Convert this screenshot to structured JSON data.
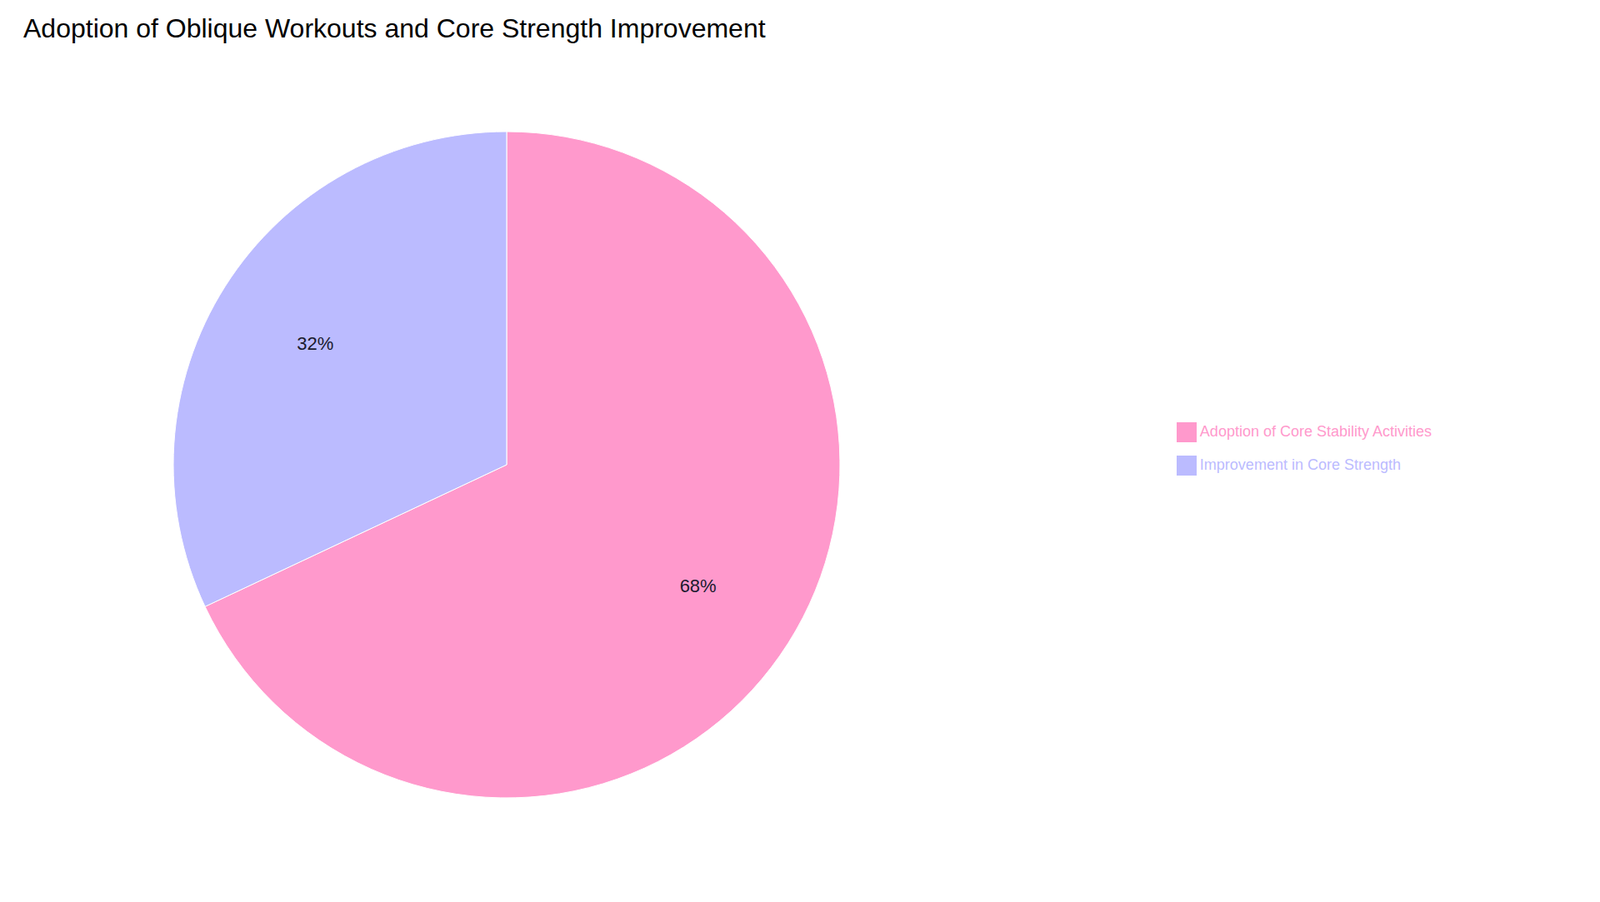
{
  "chart_data": {
    "type": "pie",
    "title": "Adoption of Oblique Workouts and Core Strength Improvement",
    "categories": [
      "Adoption of Core Stability Activities",
      "Improvement in Core Strength"
    ],
    "values": [
      68,
      32
    ],
    "value_labels": [
      "68%",
      "32%"
    ],
    "colors": [
      "#FF99CC",
      "#BBBBFF"
    ],
    "data_labels": true,
    "legend": "right"
  }
}
